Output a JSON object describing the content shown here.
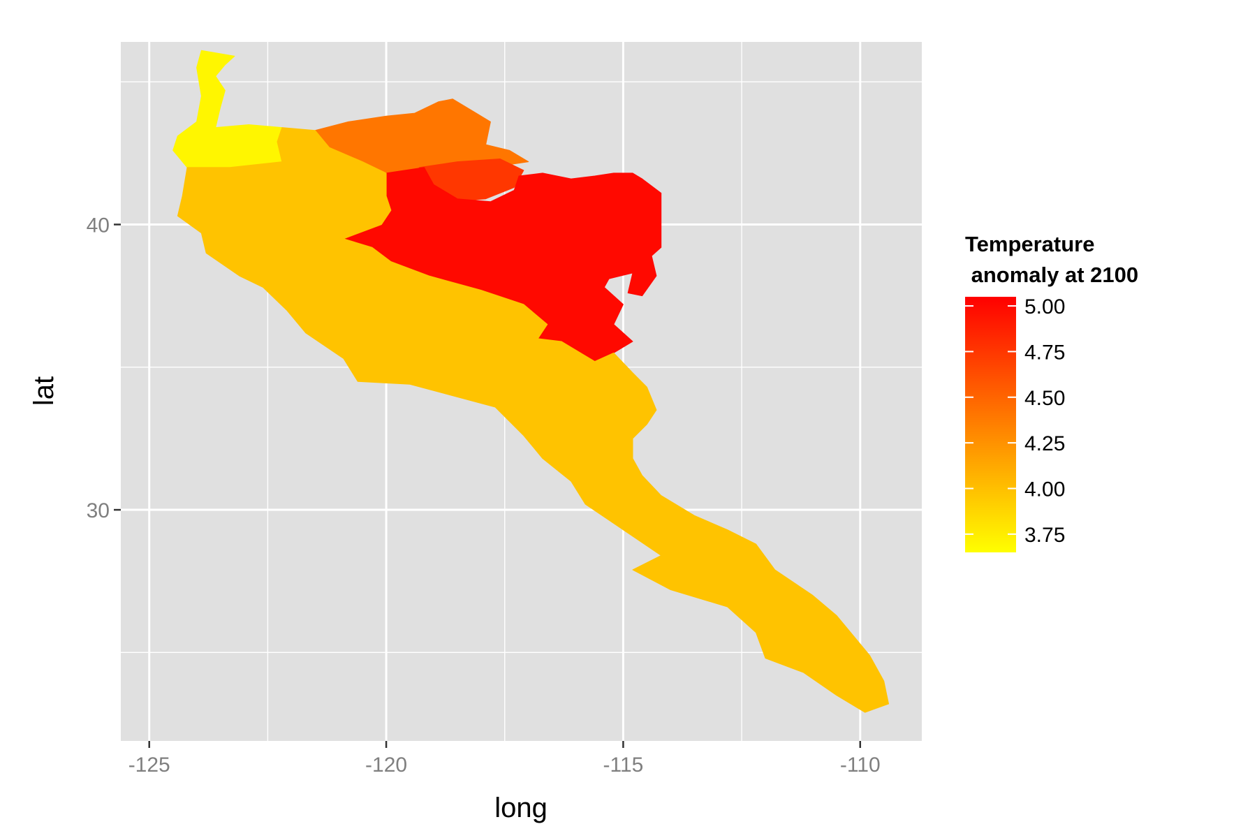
{
  "chart_data": {
    "type": "choropleth",
    "title": "",
    "xlabel": "long",
    "ylabel": "lat",
    "xlim": [
      -125.6,
      -108.7
    ],
    "ylim": [
      21.9,
      46.4
    ],
    "x_ticks": [
      -125,
      -120,
      -115,
      -110
    ],
    "x_tick_labels": [
      "-125",
      "-120",
      "-115",
      "-110"
    ],
    "y_ticks": [
      30,
      40
    ],
    "y_tick_labels": [
      "30",
      "40"
    ],
    "grid": true,
    "legend": {
      "title_line1": "Temperature",
      "title_line2": " anomaly at 2100",
      "placement": "right",
      "breaks": [
        3.75,
        4.0,
        4.25,
        4.5,
        4.75,
        5.0
      ],
      "labels": [
        "3.75",
        "4.00",
        "4.25",
        "4.50",
        "4.75",
        "5.00"
      ],
      "range": [
        3.65,
        5.05
      ],
      "low_color": "#ffff00",
      "high_color": "#ff0000"
    },
    "regions": [
      {
        "value": 3.7,
        "polygons": [
          [
            [
              -123.9,
              46.1
            ],
            [
              -123.2,
              45.9
            ],
            [
              -123.4,
              45.6
            ],
            [
              -123.6,
              45.2
            ],
            [
              -123.4,
              44.7
            ],
            [
              -123.5,
              44.1
            ],
            [
              -123.6,
              43.4
            ],
            [
              -122.9,
              43.5
            ],
            [
              -122.2,
              43.4
            ],
            [
              -122.3,
              42.9
            ],
            [
              -122.2,
              42.2
            ],
            [
              -123.3,
              42.0
            ],
            [
              -124.2,
              42.0
            ],
            [
              -124.5,
              42.6
            ],
            [
              -124.4,
              43.1
            ],
            [
              -124.0,
              43.6
            ],
            [
              -123.9,
              44.5
            ],
            [
              -124.0,
              45.5
            ]
          ]
        ]
      },
      {
        "value": 4.4,
        "polygons": [
          [
            [
              -121.5,
              43.3
            ],
            [
              -120.8,
              43.6
            ],
            [
              -120.0,
              43.8
            ],
            [
              -119.4,
              43.9
            ],
            [
              -118.9,
              44.3
            ],
            [
              -118.6,
              44.4
            ],
            [
              -118.1,
              43.9
            ],
            [
              -117.8,
              43.6
            ],
            [
              -117.9,
              42.8
            ],
            [
              -117.4,
              42.6
            ],
            [
              -117.0,
              42.2
            ],
            [
              -117.8,
              42.0
            ],
            [
              -118.5,
              42.0
            ],
            [
              -119.2,
              42.0
            ],
            [
              -120.0,
              41.8
            ],
            [
              -120.5,
              42.2
            ],
            [
              -121.2,
              42.7
            ]
          ]
        ]
      },
      {
        "value": 4.75,
        "polygons": [
          [
            [
              -119.3,
              42.0
            ],
            [
              -118.5,
              42.2
            ],
            [
              -117.6,
              42.3
            ],
            [
              -117.1,
              41.9
            ],
            [
              -117.3,
              41.3
            ],
            [
              -117.9,
              40.9
            ],
            [
              -118.6,
              40.8
            ],
            [
              -119.2,
              41.0
            ],
            [
              -119.5,
              41.5
            ]
          ]
        ]
      },
      {
        "value": 5.0,
        "polygons": [
          [
            [
              -120.0,
              41.8
            ],
            [
              -119.2,
              42.0
            ],
            [
              -119.0,
              41.4
            ],
            [
              -118.5,
              40.9
            ],
            [
              -117.8,
              40.8
            ],
            [
              -117.3,
              41.2
            ],
            [
              -117.2,
              41.7
            ],
            [
              -116.7,
              41.8
            ],
            [
              -116.1,
              41.6
            ],
            [
              -115.6,
              41.7
            ],
            [
              -115.2,
              41.8
            ],
            [
              -114.8,
              41.8
            ],
            [
              -114.6,
              41.6
            ],
            [
              -114.2,
              41.1
            ],
            [
              -114.2,
              40.2
            ],
            [
              -114.2,
              39.2
            ],
            [
              -114.4,
              38.9
            ],
            [
              -114.3,
              38.2
            ],
            [
              -114.6,
              37.5
            ],
            [
              -114.9,
              37.6
            ],
            [
              -114.8,
              38.3
            ],
            [
              -115.3,
              38.1
            ],
            [
              -115.4,
              37.8
            ],
            [
              -115.0,
              37.2
            ],
            [
              -115.2,
              36.5
            ],
            [
              -114.8,
              35.9
            ],
            [
              -115.2,
              35.5
            ],
            [
              -115.6,
              35.2
            ],
            [
              -116.3,
              35.9
            ],
            [
              -116.8,
              36.0
            ],
            [
              -116.6,
              36.5
            ],
            [
              -117.1,
              37.2
            ],
            [
              -118.0,
              37.7
            ],
            [
              -119.1,
              38.2
            ],
            [
              -119.9,
              38.7
            ],
            [
              -120.3,
              39.2
            ],
            [
              -120.9,
              39.5
            ],
            [
              -120.1,
              40.0
            ],
            [
              -119.9,
              40.5
            ],
            [
              -120.0,
              41.0
            ]
          ]
        ]
      },
      {
        "value": 3.98,
        "polygons": [
          [
            [
              -122.2,
              43.4
            ],
            [
              -121.5,
              43.3
            ],
            [
              -121.2,
              42.7
            ],
            [
              -120.5,
              42.2
            ],
            [
              -120.0,
              41.8
            ],
            [
              -120.0,
              41.0
            ],
            [
              -119.9,
              40.5
            ],
            [
              -120.1,
              40.0
            ],
            [
              -120.9,
              39.5
            ],
            [
              -120.3,
              39.2
            ],
            [
              -119.9,
              38.7
            ],
            [
              -119.1,
              38.2
            ],
            [
              -118.0,
              37.7
            ],
            [
              -117.1,
              37.2
            ],
            [
              -116.6,
              36.5
            ],
            [
              -116.8,
              36.0
            ],
            [
              -116.3,
              35.9
            ],
            [
              -115.6,
              35.2
            ],
            [
              -115.2,
              35.5
            ],
            [
              -114.8,
              34.8
            ],
            [
              -114.5,
              34.3
            ],
            [
              -114.3,
              33.5
            ],
            [
              -114.5,
              33.0
            ],
            [
              -114.8,
              32.5
            ],
            [
              -114.8,
              31.8
            ],
            [
              -114.6,
              31.2
            ],
            [
              -114.2,
              30.5
            ],
            [
              -113.5,
              29.8
            ],
            [
              -112.8,
              29.3
            ],
            [
              -112.2,
              28.8
            ],
            [
              -111.8,
              27.9
            ],
            [
              -111.0,
              27.0
            ],
            [
              -110.5,
              26.3
            ],
            [
              -110.1,
              25.5
            ],
            [
              -109.8,
              24.9
            ],
            [
              -109.5,
              24.0
            ],
            [
              -109.4,
              23.2
            ],
            [
              -109.9,
              22.9
            ],
            [
              -110.5,
              23.5
            ],
            [
              -111.2,
              24.3
            ],
            [
              -112.0,
              24.8
            ],
            [
              -112.2,
              25.7
            ],
            [
              -112.8,
              26.6
            ],
            [
              -114.0,
              27.2
            ],
            [
              -114.8,
              27.9
            ],
            [
              -114.2,
              28.4
            ],
            [
              -115.0,
              29.3
            ],
            [
              -115.8,
              30.2
            ],
            [
              -116.1,
              31.0
            ],
            [
              -116.7,
              31.8
            ],
            [
              -117.1,
              32.6
            ],
            [
              -117.7,
              33.6
            ],
            [
              -118.6,
              34.0
            ],
            [
              -119.5,
              34.4
            ],
            [
              -120.6,
              34.5
            ],
            [
              -120.9,
              35.3
            ],
            [
              -121.7,
              36.2
            ],
            [
              -122.1,
              37.0
            ],
            [
              -122.6,
              37.8
            ],
            [
              -123.1,
              38.2
            ],
            [
              -123.8,
              39.0
            ],
            [
              -123.9,
              39.7
            ],
            [
              -124.4,
              40.3
            ],
            [
              -124.3,
              41.0
            ],
            [
              -124.2,
              42.0
            ],
            [
              -123.3,
              42.0
            ],
            [
              -122.2,
              42.2
            ],
            [
              -122.3,
              42.9
            ]
          ]
        ]
      }
    ]
  }
}
